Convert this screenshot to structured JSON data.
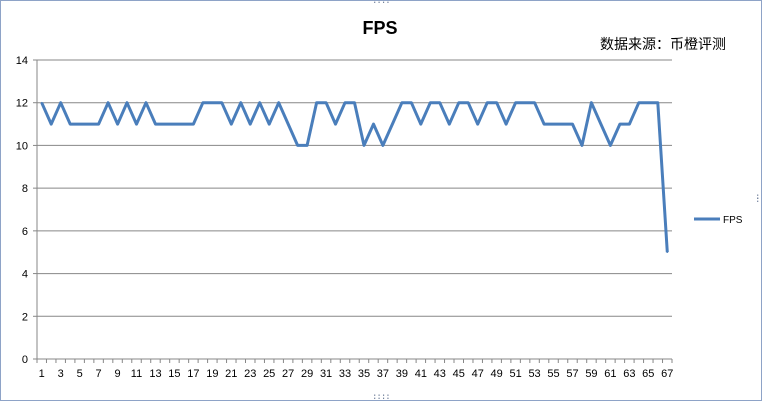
{
  "chart_data": {
    "type": "line",
    "title": "FPS",
    "annotation": "数据来源：币橙评测",
    "ylim": [
      0,
      14
    ],
    "ytick_step": 2,
    "yticks": [
      "0",
      "2",
      "4",
      "6",
      "8",
      "10",
      "12",
      "14"
    ],
    "xticks": [
      "1",
      "3",
      "5",
      "7",
      "9",
      "11",
      "13",
      "15",
      "17",
      "19",
      "21",
      "23",
      "25",
      "27",
      "29",
      "31",
      "33",
      "35",
      "37",
      "39",
      "41",
      "43",
      "45",
      "47",
      "49",
      "51",
      "53",
      "55",
      "57",
      "59",
      "61",
      "63",
      "65",
      "67"
    ],
    "grid": "horizontal",
    "legend_position": "right",
    "series_color": "#4a7ebb",
    "x": [
      1,
      2,
      3,
      4,
      5,
      6,
      7,
      8,
      9,
      10,
      11,
      12,
      13,
      14,
      15,
      16,
      17,
      18,
      19,
      20,
      21,
      22,
      23,
      24,
      25,
      26,
      27,
      28,
      29,
      30,
      31,
      32,
      33,
      34,
      35,
      36,
      37,
      38,
      39,
      40,
      41,
      42,
      43,
      44,
      45,
      46,
      47,
      48,
      49,
      50,
      51,
      52,
      53,
      54,
      55,
      56,
      57,
      58,
      59,
      60,
      61,
      62,
      63,
      64,
      65,
      66,
      67
    ],
    "series": [
      {
        "name": "FPS",
        "values": [
          12,
          11,
          12,
          11,
          11,
          11,
          11,
          12,
          11,
          12,
          11,
          12,
          11,
          11,
          11,
          11,
          11,
          12,
          12,
          12,
          11,
          12,
          11,
          12,
          11,
          12,
          11,
          10,
          10,
          12,
          12,
          11,
          12,
          12,
          10,
          11,
          10,
          11,
          12,
          12,
          11,
          12,
          12,
          11,
          12,
          12,
          11,
          12,
          12,
          11,
          12,
          12,
          12,
          11,
          11,
          11,
          11,
          10,
          12,
          11,
          10,
          11,
          11,
          12,
          12,
          12,
          5
        ]
      }
    ]
  }
}
